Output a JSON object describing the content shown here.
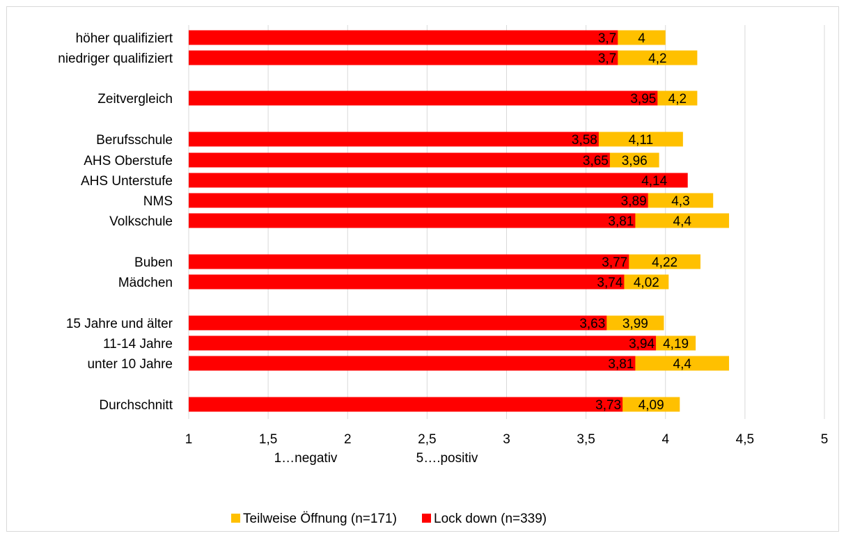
{
  "chart_data": {
    "type": "bar",
    "orientation": "horizontal",
    "title": "",
    "categories": [
      "höher qualifiziert",
      "niedriger qualifiziert",
      "Zeitvergleich",
      "Berufsschule",
      "AHS Oberstufe",
      "AHS Unterstufe",
      "NMS",
      "Volkschule",
      "Buben",
      "Mädchen",
      "15 Jahre und älter",
      "11-14 Jahre",
      "unter 10 Jahre",
      "Durchschnitt"
    ],
    "series": [
      {
        "name": "Teilweise Öffnung (n=171)",
        "color": "#FFC000",
        "values": [
          4,
          4.2,
          4.2,
          4.11,
          3.96,
          null,
          4.3,
          4.4,
          4.22,
          4.02,
          3.99,
          4.19,
          4.4,
          4.09
        ],
        "labels": [
          "4",
          "4,2",
          "4,2",
          "4,11",
          "3,96",
          "",
          "4,3",
          "4,4",
          "4,22",
          "4,02",
          "3,99",
          "4,19",
          "4,4",
          "4,09"
        ]
      },
      {
        "name": "Lock down (n=339)",
        "color": "#FF0000",
        "values": [
          3.7,
          3.7,
          3.95,
          3.58,
          3.65,
          4.14,
          3.89,
          3.81,
          3.77,
          3.74,
          3.63,
          3.94,
          3.81,
          3.73
        ],
        "labels": [
          "3,7",
          "3,7",
          "3,95",
          "3,58",
          "3,65",
          "4,14",
          "3,89",
          "3,81",
          "3,77",
          "3,74",
          "3,63",
          "3,94",
          "3,81",
          "3,73"
        ]
      }
    ],
    "xlim": [
      1,
      5
    ],
    "xticks": [
      1,
      1.5,
      2,
      2.5,
      3,
      3.5,
      4,
      4.5,
      5
    ],
    "xtick_labels": [
      "1",
      "1,5",
      "2",
      "2,5",
      "3",
      "3,5",
      "4",
      "4,5",
      "5"
    ],
    "xlabel_notes": [
      "1…negativ",
      "5….positiv"
    ],
    "grid": "vertical",
    "legend_position": "bottom",
    "legend_order": [
      "Teilweise Öffnung (n=171)",
      "Lock down (n=339)"
    ]
  }
}
